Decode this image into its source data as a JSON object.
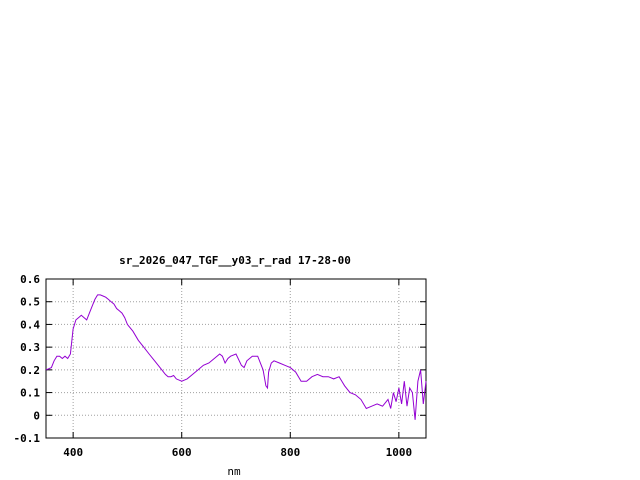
{
  "chart_data": {
    "type": "line",
    "title": "sr_2026_047_TGF__y03_r_rad 17-28-00",
    "xlabel": "nm",
    "ylabel": "",
    "xlim": [
      350,
      1050
    ],
    "ylim": [
      -0.1,
      0.6
    ],
    "x_ticks": [
      400,
      600,
      800,
      1000
    ],
    "y_ticks": [
      -0.1,
      0,
      0.1,
      0.2,
      0.3,
      0.4,
      0.5,
      0.6
    ],
    "x_tick_labels": [
      "400",
      "600",
      "800",
      "1000"
    ],
    "y_tick_labels": [
      "-0.1",
      "0",
      "0.1",
      "0.2",
      "0.3",
      "0.4",
      "0.5",
      "0.6"
    ],
    "grid": true,
    "line_color": "#9400d3",
    "series": [
      {
        "x": [
          350,
          360,
          365,
          370,
          375,
          380,
          385,
          390,
          395,
          400,
          405,
          410,
          415,
          420,
          425,
          430,
          435,
          440,
          445,
          450,
          455,
          460,
          465,
          470,
          475,
          480,
          485,
          490,
          495,
          500,
          510,
          520,
          530,
          540,
          550,
          560,
          570,
          575,
          580,
          585,
          590,
          600,
          610,
          620,
          630,
          640,
          650,
          660,
          670,
          675,
          680,
          685,
          690,
          700,
          710,
          715,
          720,
          730,
          740,
          750,
          755,
          758,
          760,
          765,
          770,
          780,
          790,
          800,
          810,
          820,
          830,
          840,
          850,
          860,
          870,
          880,
          890,
          900,
          910,
          920,
          930,
          940,
          950,
          960,
          970,
          980,
          985,
          990,
          995,
          1000,
          1005,
          1010,
          1015,
          1020,
          1025,
          1030,
          1035,
          1040,
          1045,
          1050
        ],
        "y": [
          0.2,
          0.21,
          0.24,
          0.26,
          0.26,
          0.25,
          0.26,
          0.25,
          0.27,
          0.38,
          0.42,
          0.43,
          0.44,
          0.43,
          0.42,
          0.45,
          0.48,
          0.51,
          0.53,
          0.53,
          0.525,
          0.52,
          0.51,
          0.5,
          0.49,
          0.47,
          0.46,
          0.45,
          0.43,
          0.4,
          0.37,
          0.33,
          0.3,
          0.27,
          0.24,
          0.21,
          0.18,
          0.17,
          0.17,
          0.175,
          0.16,
          0.15,
          0.16,
          0.18,
          0.2,
          0.22,
          0.23,
          0.25,
          0.27,
          0.26,
          0.23,
          0.25,
          0.26,
          0.27,
          0.22,
          0.21,
          0.24,
          0.26,
          0.26,
          0.2,
          0.13,
          0.12,
          0.19,
          0.23,
          0.24,
          0.23,
          0.22,
          0.21,
          0.19,
          0.15,
          0.15,
          0.17,
          0.18,
          0.17,
          0.17,
          0.16,
          0.17,
          0.13,
          0.1,
          0.09,
          0.07,
          0.03,
          0.04,
          0.05,
          0.04,
          0.07,
          0.03,
          0.1,
          0.06,
          0.12,
          0.05,
          0.15,
          0.04,
          0.12,
          0.1,
          -0.02,
          0.15,
          0.2,
          0.05,
          0.15
        ]
      }
    ]
  }
}
